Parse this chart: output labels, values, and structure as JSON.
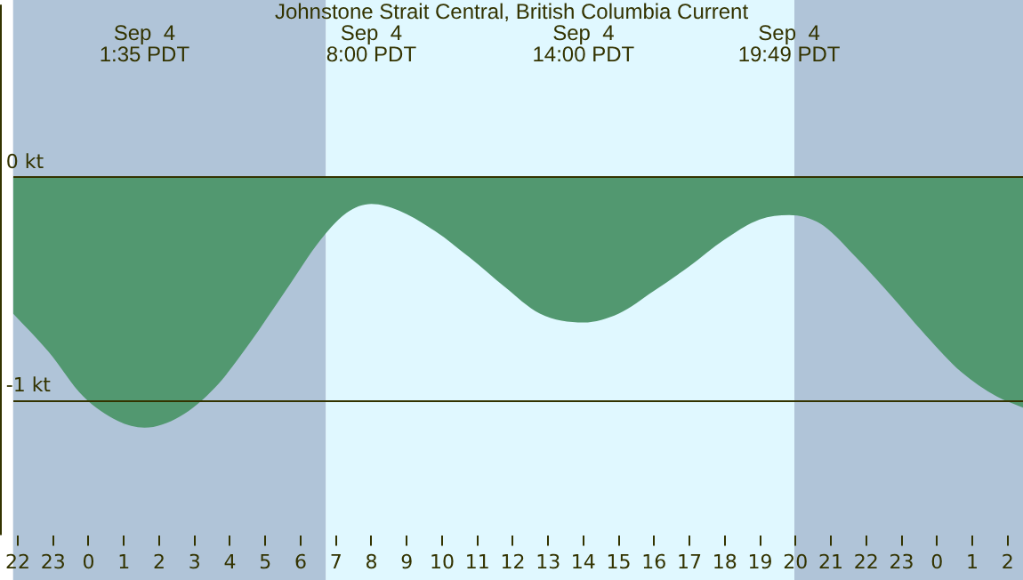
{
  "chart_data": {
    "type": "area",
    "title": "Johnstone Strait Central, British Columbia Current",
    "x": [
      "--09-03T21:52",
      "--09-03T22:52",
      "--09-03T23:51",
      "--09-04T00:50",
      "--09-04T01:35",
      "--09-04T02:35",
      "--09-04T03:35",
      "--09-04T04:34",
      "--09-04T05:34",
      "--09-04T06:34",
      "--09-04T07:18",
      "--09-04T08:00",
      "--09-04T08:47",
      "--09-04T09:47",
      "--09-04T10:47",
      "--09-04T11:46",
      "--09-04T12:46",
      "--09-04T14:00",
      "--09-04T15:00",
      "--09-04T15:59",
      "--09-04T16:59",
      "--09-04T17:59",
      "--09-04T18:59",
      "--09-04T19:49",
      "--09-04T20:43",
      "--09-04T21:43",
      "--09-04T22:42",
      "--09-04T23:42",
      "--09-05T00:41",
      "--09-05T01:41",
      "--09-05T02:26"
    ],
    "series": [
      {
        "color": "#529870",
        "values": [
          -0.61,
          -0.78,
          -0.98,
          -1.09,
          -1.12,
          -1.07,
          -0.94,
          -0.74,
          -0.51,
          -0.28,
          -0.16,
          -0.12,
          -0.15,
          -0.24,
          -0.36,
          -0.49,
          -0.61,
          -0.65,
          -0.61,
          -0.51,
          -0.4,
          -0.28,
          -0.19,
          -0.17,
          -0.21,
          -0.36,
          -0.53,
          -0.71,
          -0.87,
          -0.98,
          -1.03
        ]
      }
    ],
    "xlim": [
      "--09-03T21:52",
      "--09-05T02:26"
    ],
    "xticks": [
      {
        "value": "--09-03T22:00",
        "label": "22"
      },
      {
        "value": "--09-03T23:00",
        "label": "23"
      },
      {
        "value": "--09-04T00:00",
        "label": "0"
      },
      {
        "value": "--09-04T01:00",
        "label": "1"
      },
      {
        "value": "--09-04T02:00",
        "label": "2"
      },
      {
        "value": "--09-04T03:00",
        "label": "3"
      },
      {
        "value": "--09-04T04:00",
        "label": "4"
      },
      {
        "value": "--09-04T05:00",
        "label": "5"
      },
      {
        "value": "--09-04T06:00",
        "label": "6"
      },
      {
        "value": "--09-04T07:00",
        "label": "7"
      },
      {
        "value": "--09-04T08:00",
        "label": "8"
      },
      {
        "value": "--09-04T09:00",
        "label": "9"
      },
      {
        "value": "--09-04T10:00",
        "label": "10"
      },
      {
        "value": "--09-04T11:00",
        "label": "11"
      },
      {
        "value": "--09-04T12:00",
        "label": "12"
      },
      {
        "value": "--09-04T13:00",
        "label": "13"
      },
      {
        "value": "--09-04T14:00",
        "label": "14"
      },
      {
        "value": "--09-04T15:00",
        "label": "15"
      },
      {
        "value": "--09-04T16:00",
        "label": "16"
      },
      {
        "value": "--09-04T17:00",
        "label": "17"
      },
      {
        "value": "--09-04T18:00",
        "label": "18"
      },
      {
        "value": "--09-04T19:00",
        "label": "19"
      },
      {
        "value": "--09-04T20:00",
        "label": "20"
      },
      {
        "value": "--09-04T21:00",
        "label": "21"
      },
      {
        "value": "--09-04T22:00",
        "label": "22"
      },
      {
        "value": "--09-04T23:00",
        "label": "23"
      },
      {
        "value": "--09-05T00:00",
        "label": "0"
      },
      {
        "value": "--09-05T01:00",
        "label": "1"
      },
      {
        "value": "--09-05T02:00",
        "label": "2"
      }
    ],
    "ylim": [
      -1.6,
      0.77
    ],
    "yticks": [
      {
        "value": 0,
        "label": "0 kt"
      },
      {
        "value": -1,
        "label": "-1 kt"
      }
    ],
    "grid": "y",
    "legend": false,
    "marker": "none",
    "bands": [
      {
        "axis": "x",
        "from": "--09-03T21:52",
        "to": "--09-04T06:43",
        "color": "#b0c4d8"
      },
      {
        "axis": "x",
        "from": "--09-04T06:43",
        "to": "--09-04T19:58",
        "color": "#e0f8ff"
      },
      {
        "axis": "x",
        "from": "--09-04T19:58",
        "to": "--09-05T02:26",
        "color": "#b0c4d8"
      }
    ],
    "annotations": [
      "Sep  4\n1:35 PDT",
      "Sep  4\n8:00 PDT",
      "Sep  4\n14:00 PDT",
      "Sep  4\n19:49 PDT"
    ]
  }
}
